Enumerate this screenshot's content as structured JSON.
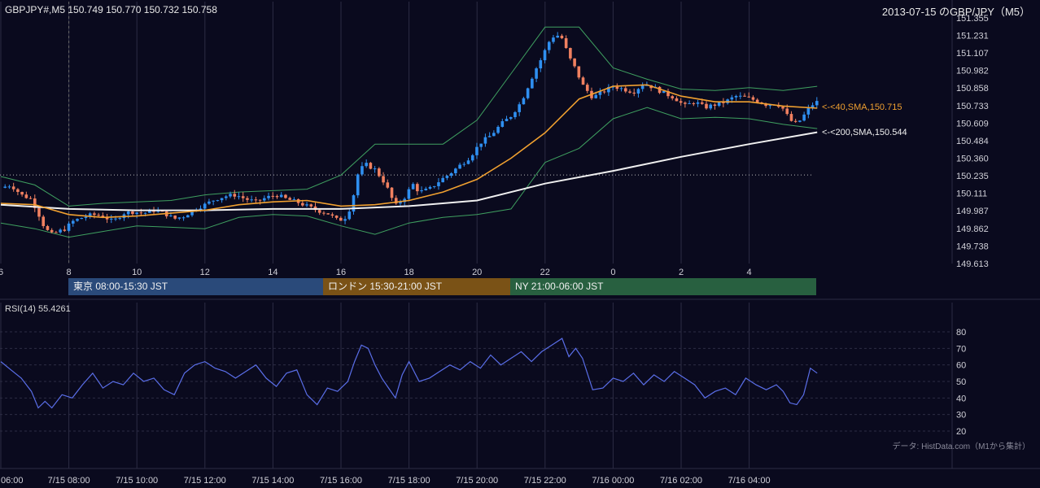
{
  "header": {
    "symbol_ohlc": "GBPJPY#,M5 150.749 150.770 150.732 150.758",
    "date_title": "2013-07-15 のGBP/JPY（M5）"
  },
  "colors": {
    "background": "#0a0a1e",
    "candle_up": "#2f8ff0",
    "candle_down": "#f08060",
    "sma40": "#f0a030",
    "sma200": "#f0f0f0",
    "bollinger": "#3fa060",
    "rsi": "#5a6ee8",
    "grid": "#2c2c44",
    "tokyo": "#2a4a7a",
    "london": "#7a5216",
    "ny": "#286040"
  },
  "main_panel": {
    "y_ticks": [
      "151.355",
      "151.231",
      "151.107",
      "150.982",
      "150.858",
      "150.733",
      "150.609",
      "150.484",
      "150.360",
      "150.235",
      "150.111",
      "149.987",
      "149.862",
      "149.738",
      "149.613"
    ],
    "x_ticks": [
      "6",
      "8",
      "10",
      "12",
      "14",
      "16",
      "18",
      "20",
      "22",
      "0",
      "2",
      "4"
    ],
    "sma40_label": "<-<40,SMA,150.715",
    "sma200_label": "<-<200,SMA,150.544"
  },
  "sessions": [
    {
      "label": "東京 08:00-15:30 JST"
    },
    {
      "label": "ロンドン 15:30-21:00 JST"
    },
    {
      "label": "NY 21:00-06:00 JST"
    }
  ],
  "rsi_panel": {
    "title": "RSI(14) 55.4261",
    "y_ticks": [
      "80",
      "70",
      "60",
      "50",
      "40",
      "30",
      "20"
    ],
    "source_note": "データ: HistData.com（M1から集計）"
  },
  "bottom_axis": {
    "x_ticks": [
      "06:00",
      "7/15 08:00",
      "7/15 10:00",
      "7/15 12:00",
      "7/15 14:00",
      "7/15 16:00",
      "7/15 18:00",
      "7/15 20:00",
      "7/15 22:00",
      "7/16 00:00",
      "7/16 02:00",
      "7/16 04:00"
    ]
  },
  "chart_data": [
    {
      "type": "line",
      "title": "GBPJPY#,M5 150.749 150.770 150.732 150.758",
      "subtitle": "2013-07-15 のGBP/JPY（M5）",
      "x_unit": "hours since 7/15 06:00 JST",
      "ylim": [
        149.613,
        151.355
      ],
      "price_path": [
        [
          0.0,
          150.15
        ],
        [
          0.3,
          150.17
        ],
        [
          0.6,
          150.1
        ],
        [
          0.9,
          150.07
        ],
        [
          1.1,
          149.97
        ],
        [
          1.3,
          149.86
        ],
        [
          1.5,
          149.82
        ],
        [
          1.7,
          149.84
        ],
        [
          1.9,
          149.86
        ],
        [
          2.1,
          149.91
        ],
        [
          2.4,
          149.94
        ],
        [
          2.7,
          149.96
        ],
        [
          3.0,
          149.95
        ],
        [
          3.3,
          149.91
        ],
        [
          3.6,
          149.97
        ],
        [
          3.9,
          149.98
        ],
        [
          4.2,
          149.97
        ],
        [
          4.5,
          149.99
        ],
        [
          4.8,
          149.97
        ],
        [
          5.1,
          149.93
        ],
        [
          5.4,
          149.95
        ],
        [
          5.7,
          150.0
        ],
        [
          6.0,
          150.03
        ],
        [
          6.3,
          150.07
        ],
        [
          6.6,
          150.09
        ],
        [
          6.9,
          150.1
        ],
        [
          7.2,
          150.07
        ],
        [
          7.5,
          150.05
        ],
        [
          7.8,
          150.08
        ],
        [
          8.1,
          150.1
        ],
        [
          8.4,
          150.07
        ],
        [
          8.7,
          150.05
        ],
        [
          9.0,
          150.02
        ],
        [
          9.3,
          149.99
        ],
        [
          9.6,
          149.97
        ],
        [
          9.9,
          149.92
        ],
        [
          10.1,
          149.93
        ],
        [
          10.3,
          150.02
        ],
        [
          10.5,
          150.25
        ],
        [
          10.7,
          150.32
        ],
        [
          11.0,
          150.28
        ],
        [
          11.3,
          150.18
        ],
        [
          11.6,
          150.02
        ],
        [
          11.9,
          150.09
        ],
        [
          12.1,
          150.18
        ],
        [
          12.3,
          150.12
        ],
        [
          12.6,
          150.14
        ],
        [
          12.9,
          150.2
        ],
        [
          13.2,
          150.25
        ],
        [
          13.5,
          150.31
        ],
        [
          13.8,
          150.37
        ],
        [
          14.1,
          150.47
        ],
        [
          14.4,
          150.52
        ],
        [
          14.7,
          150.6
        ],
        [
          15.0,
          150.66
        ],
        [
          15.3,
          150.76
        ],
        [
          15.5,
          150.87
        ],
        [
          15.7,
          150.98
        ],
        [
          15.9,
          151.07
        ],
        [
          16.1,
          151.18
        ],
        [
          16.3,
          151.24
        ],
        [
          16.5,
          151.21
        ],
        [
          16.7,
          151.08
        ],
        [
          16.9,
          150.99
        ],
        [
          17.1,
          150.88
        ],
        [
          17.4,
          150.79
        ],
        [
          17.7,
          150.83
        ],
        [
          18.0,
          150.87
        ],
        [
          18.3,
          150.85
        ],
        [
          18.6,
          150.83
        ],
        [
          18.9,
          150.89
        ],
        [
          19.2,
          150.86
        ],
        [
          19.5,
          150.82
        ],
        [
          19.8,
          150.79
        ],
        [
          20.1,
          150.73
        ],
        [
          20.4,
          150.76
        ],
        [
          20.7,
          150.72
        ],
        [
          21.0,
          150.74
        ],
        [
          21.3,
          150.76
        ],
        [
          21.6,
          150.8
        ],
        [
          21.9,
          150.79
        ],
        [
          22.2,
          150.77
        ],
        [
          22.5,
          150.74
        ],
        [
          22.8,
          150.75
        ],
        [
          23.0,
          150.71
        ],
        [
          23.2,
          150.63
        ],
        [
          23.4,
          150.6
        ],
        [
          23.6,
          150.66
        ],
        [
          23.8,
          150.73
        ],
        [
          24.0,
          150.76
        ]
      ],
      "series": [
        {
          "name": "<-<40,SMA,150.715",
          "points": [
            [
              0,
              150.04
            ],
            [
              1,
              150.03
            ],
            [
              2,
              149.96
            ],
            [
              3,
              149.94
            ],
            [
              4,
              149.95
            ],
            [
              5,
              149.97
            ],
            [
              6,
              149.99
            ],
            [
              7,
              150.03
            ],
            [
              8,
              150.05
            ],
            [
              9,
              150.06
            ],
            [
              10,
              150.02
            ],
            [
              11,
              150.03
            ],
            [
              12,
              150.06
            ],
            [
              13,
              150.12
            ],
            [
              14,
              150.21
            ],
            [
              15,
              150.36
            ],
            [
              16,
              150.54
            ],
            [
              17,
              150.78
            ],
            [
              18,
              150.87
            ],
            [
              19,
              150.88
            ],
            [
              20,
              150.8
            ],
            [
              21,
              150.76
            ],
            [
              22,
              150.76
            ],
            [
              23,
              150.73
            ],
            [
              24,
              150.715
            ]
          ]
        },
        {
          "name": "<-<200,SMA,150.544",
          "points": [
            [
              0,
              150.03
            ],
            [
              2,
              150.0
            ],
            [
              4,
              149.99
            ],
            [
              6,
              149.99
            ],
            [
              8,
              150.0
            ],
            [
              10,
              150.0
            ],
            [
              12,
              150.02
            ],
            [
              14,
              150.06
            ],
            [
              16,
              150.18
            ],
            [
              18,
              150.27
            ],
            [
              20,
              150.37
            ],
            [
              22,
              150.46
            ],
            [
              24,
              150.544
            ]
          ]
        },
        {
          "name": "",
          "points": [
            [
              0,
              150.23
            ],
            [
              1,
              150.17
            ],
            [
              2,
              150.02
            ],
            [
              3,
              150.04
            ],
            [
              4,
              150.05
            ],
            [
              5,
              150.06
            ],
            [
              6,
              150.1
            ],
            [
              7,
              150.12
            ],
            [
              8,
              150.13
            ],
            [
              9,
              150.14
            ],
            [
              10,
              150.24
            ],
            [
              11,
              150.46
            ],
            [
              12,
              150.46
            ],
            [
              13,
              150.46
            ],
            [
              14,
              150.63
            ],
            [
              15,
              150.96
            ],
            [
              16,
              151.29
            ],
            [
              17,
              151.29
            ],
            [
              18,
              151.0
            ],
            [
              19,
              150.92
            ],
            [
              20,
              150.85
            ],
            [
              21,
              150.84
            ],
            [
              22,
              150.86
            ],
            [
              23,
              150.84
            ],
            [
              24,
              150.87
            ]
          ]
        },
        {
          "name": "",
          "points": [
            [
              0,
              149.9
            ],
            [
              1,
              149.86
            ],
            [
              2,
              149.8
            ],
            [
              3,
              149.84
            ],
            [
              4,
              149.88
            ],
            [
              5,
              149.87
            ],
            [
              6,
              149.86
            ],
            [
              7,
              149.94
            ],
            [
              8,
              149.96
            ],
            [
              9,
              149.95
            ],
            [
              10,
              149.88
            ],
            [
              11,
              149.82
            ],
            [
              12,
              149.9
            ],
            [
              13,
              149.94
            ],
            [
              14,
              149.96
            ],
            [
              15,
              150.0
            ],
            [
              16,
              150.33
            ],
            [
              17,
              150.43
            ],
            [
              18,
              150.64
            ],
            [
              19,
              150.72
            ],
            [
              20,
              150.64
            ],
            [
              21,
              150.65
            ],
            [
              22,
              150.64
            ],
            [
              23,
              150.6
            ],
            [
              24,
              150.57
            ]
          ]
        }
      ]
    },
    {
      "type": "line",
      "title": "RSI(14) 55.4261",
      "ylim": [
        20,
        80
      ],
      "series": [
        {
          "name": "RSI(14) 55.4261",
          "points": [
            [
              0,
              62
            ],
            [
              0.3,
              57
            ],
            [
              0.6,
              52
            ],
            [
              0.9,
              44
            ],
            [
              1.1,
              34
            ],
            [
              1.3,
              38
            ],
            [
              1.5,
              34
            ],
            [
              1.8,
              42
            ],
            [
              2.1,
              40
            ],
            [
              2.4,
              48
            ],
            [
              2.7,
              55
            ],
            [
              3.0,
              46
            ],
            [
              3.3,
              50
            ],
            [
              3.6,
              48
            ],
            [
              3.9,
              55
            ],
            [
              4.2,
              50
            ],
            [
              4.5,
              52
            ],
            [
              4.8,
              45
            ],
            [
              5.1,
              42
            ],
            [
              5.4,
              55
            ],
            [
              5.7,
              60
            ],
            [
              6.0,
              62
            ],
            [
              6.3,
              58
            ],
            [
              6.6,
              56
            ],
            [
              6.9,
              52
            ],
            [
              7.2,
              56
            ],
            [
              7.5,
              60
            ],
            [
              7.8,
              52
            ],
            [
              8.1,
              47
            ],
            [
              8.4,
              55
            ],
            [
              8.7,
              57
            ],
            [
              9.0,
              42
            ],
            [
              9.3,
              36
            ],
            [
              9.6,
              46
            ],
            [
              9.9,
              44
            ],
            [
              10.2,
              50
            ],
            [
              10.4,
              62
            ],
            [
              10.6,
              72
            ],
            [
              10.8,
              70
            ],
            [
              11.0,
              60
            ],
            [
              11.2,
              52
            ],
            [
              11.4,
              46
            ],
            [
              11.6,
              40
            ],
            [
              11.8,
              54
            ],
            [
              12.0,
              62
            ],
            [
              12.3,
              50
            ],
            [
              12.6,
              52
            ],
            [
              12.9,
              56
            ],
            [
              13.2,
              60
            ],
            [
              13.5,
              57
            ],
            [
              13.8,
              62
            ],
            [
              14.1,
              58
            ],
            [
              14.4,
              66
            ],
            [
              14.7,
              60
            ],
            [
              15.0,
              64
            ],
            [
              15.3,
              68
            ],
            [
              15.6,
              62
            ],
            [
              15.9,
              68
            ],
            [
              16.2,
              72
            ],
            [
              16.5,
              76
            ],
            [
              16.7,
              65
            ],
            [
              16.9,
              70
            ],
            [
              17.1,
              64
            ],
            [
              17.4,
              45
            ],
            [
              17.7,
              46
            ],
            [
              18.0,
              52
            ],
            [
              18.3,
              50
            ],
            [
              18.6,
              55
            ],
            [
              18.9,
              48
            ],
            [
              19.2,
              54
            ],
            [
              19.5,
              50
            ],
            [
              19.8,
              56
            ],
            [
              20.1,
              52
            ],
            [
              20.4,
              48
            ],
            [
              20.7,
              40
            ],
            [
              21.0,
              44
            ],
            [
              21.3,
              46
            ],
            [
              21.6,
              42
            ],
            [
              21.9,
              52
            ],
            [
              22.2,
              48
            ],
            [
              22.5,
              45
            ],
            [
              22.8,
              48
            ],
            [
              23.0,
              44
            ],
            [
              23.2,
              37
            ],
            [
              23.4,
              36
            ],
            [
              23.6,
              42
            ],
            [
              23.8,
              58
            ],
            [
              24.0,
              55
            ]
          ]
        }
      ]
    }
  ]
}
